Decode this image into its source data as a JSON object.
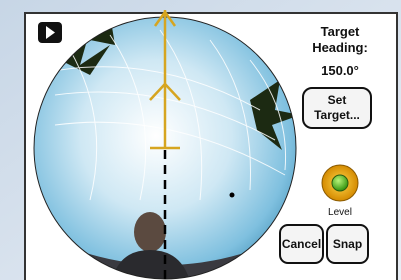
{
  "target_heading": {
    "label": [
      "Target",
      "Heading:"
    ],
    "value": "150.0°"
  },
  "buttons": {
    "set_target": [
      "Set",
      "Target..."
    ],
    "cancel": "Cancel",
    "snap": "Snap"
  },
  "level": {
    "label": "Level"
  }
}
